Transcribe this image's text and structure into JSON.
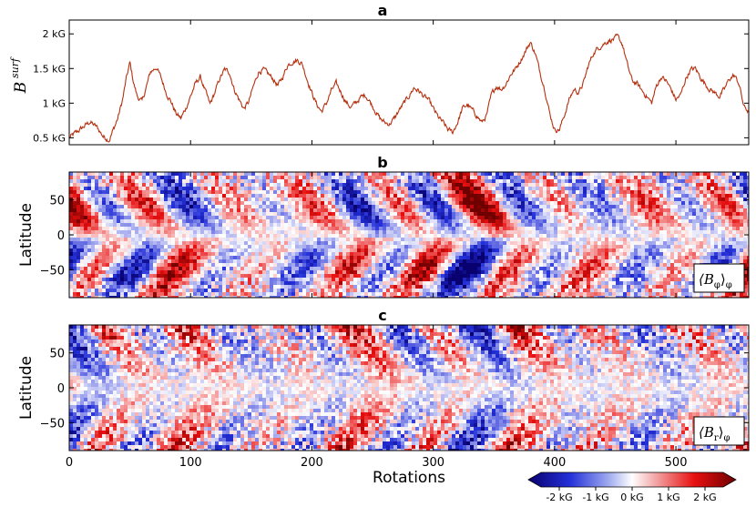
{
  "chart_data": [
    {
      "id": "a",
      "type": "line",
      "title": "a",
      "ylabel": "B",
      "ylabel_sup": "surf",
      "xlim": [
        0,
        560
      ],
      "ylim": [
        0.4,
        2.2
      ],
      "yticks": [
        0.5,
        1,
        1.5,
        2
      ],
      "ytick_labels": [
        "0.5 kG",
        "1 kG",
        "1.5 kG",
        "2 kG"
      ],
      "xticks": [
        0,
        100,
        200,
        300,
        400,
        500
      ],
      "color": "#b5300f",
      "key_points": [
        [
          0,
          0.5
        ],
        [
          6,
          0.58
        ],
        [
          12,
          0.66
        ],
        [
          17,
          0.73
        ],
        [
          23,
          0.65
        ],
        [
          28,
          0.52
        ],
        [
          33,
          0.47
        ],
        [
          40,
          0.78
        ],
        [
          44,
          1.05
        ],
        [
          47,
          1.35
        ],
        [
          50,
          1.58
        ],
        [
          53,
          1.3
        ],
        [
          56,
          1.1
        ],
        [
          60,
          1.02
        ],
        [
          63,
          1.2
        ],
        [
          67,
          1.45
        ],
        [
          72,
          1.52
        ],
        [
          76,
          1.35
        ],
        [
          80,
          1.15
        ],
        [
          84,
          1.02
        ],
        [
          88,
          0.85
        ],
        [
          92,
          0.78
        ],
        [
          96,
          0.92
        ],
        [
          100,
          1.1
        ],
        [
          104,
          1.28
        ],
        [
          108,
          1.38
        ],
        [
          112,
          1.18
        ],
        [
          116,
          0.98
        ],
        [
          120,
          1.15
        ],
        [
          124,
          1.35
        ],
        [
          128,
          1.48
        ],
        [
          132,
          1.45
        ],
        [
          136,
          1.2
        ],
        [
          140,
          1.05
        ],
        [
          144,
          0.92
        ],
        [
          148,
          1.02
        ],
        [
          152,
          1.25
        ],
        [
          156,
          1.45
        ],
        [
          160,
          1.48
        ],
        [
          164,
          1.42
        ],
        [
          168,
          1.35
        ],
        [
          172,
          1.25
        ],
        [
          176,
          1.38
        ],
        [
          180,
          1.55
        ],
        [
          184,
          1.6
        ],
        [
          188,
          1.62
        ],
        [
          192,
          1.57
        ],
        [
          196,
          1.35
        ],
        [
          200,
          1.15
        ],
        [
          204,
          0.98
        ],
        [
          208,
          0.88
        ],
        [
          212,
          1.0
        ],
        [
          216,
          1.18
        ],
        [
          220,
          1.28
        ],
        [
          224,
          1.16
        ],
        [
          228,
          1.02
        ],
        [
          232,
          0.94
        ],
        [
          236,
          1.0
        ],
        [
          240,
          1.08
        ],
        [
          244,
          1.12
        ],
        [
          248,
          1.02
        ],
        [
          252,
          0.9
        ],
        [
          256,
          0.78
        ],
        [
          260,
          0.72
        ],
        [
          264,
          0.7
        ],
        [
          268,
          0.78
        ],
        [
          272,
          0.9
        ],
        [
          276,
          1.0
        ],
        [
          280,
          1.1
        ],
        [
          284,
          1.22
        ],
        [
          288,
          1.18
        ],
        [
          292,
          1.1
        ],
        [
          296,
          1.05
        ],
        [
          300,
          0.92
        ],
        [
          304,
          0.8
        ],
        [
          308,
          0.72
        ],
        [
          312,
          0.62
        ],
        [
          316,
          0.58
        ],
        [
          320,
          0.72
        ],
        [
          324,
          0.92
        ],
        [
          328,
          0.98
        ],
        [
          332,
          0.9
        ],
        [
          336,
          0.82
        ],
        [
          340,
          0.72
        ],
        [
          344,
          0.82
        ],
        [
          348,
          1.12
        ],
        [
          352,
          1.25
        ],
        [
          356,
          1.2
        ],
        [
          360,
          1.28
        ],
        [
          364,
          1.42
        ],
        [
          368,
          1.5
        ],
        [
          372,
          1.62
        ],
        [
          376,
          1.75
        ],
        [
          380,
          1.88
        ],
        [
          384,
          1.72
        ],
        [
          388,
          1.45
        ],
        [
          392,
          1.2
        ],
        [
          396,
          0.85
        ],
        [
          400,
          0.62
        ],
        [
          404,
          0.62
        ],
        [
          408,
          0.82
        ],
        [
          412,
          1.05
        ],
        [
          416,
          1.2
        ],
        [
          420,
          1.15
        ],
        [
          424,
          1.3
        ],
        [
          428,
          1.55
        ],
        [
          432,
          1.72
        ],
        [
          436,
          1.8
        ],
        [
          440,
          1.85
        ],
        [
          444,
          1.9
        ],
        [
          448,
          1.92
        ],
        [
          452,
          1.95
        ],
        [
          456,
          1.85
        ],
        [
          460,
          1.55
        ],
        [
          464,
          1.32
        ],
        [
          468,
          1.28
        ],
        [
          472,
          1.18
        ],
        [
          476,
          1.1
        ],
        [
          480,
          1.0
        ],
        [
          484,
          1.25
        ],
        [
          488,
          1.38
        ],
        [
          492,
          1.32
        ],
        [
          496,
          1.2
        ],
        [
          500,
          1.05
        ],
        [
          504,
          1.12
        ],
        [
          508,
          1.35
        ],
        [
          512,
          1.48
        ],
        [
          516,
          1.5
        ],
        [
          520,
          1.38
        ],
        [
          524,
          1.28
        ],
        [
          528,
          1.2
        ],
        [
          532,
          1.15
        ],
        [
          536,
          1.1
        ],
        [
          540,
          1.2
        ],
        [
          544,
          1.35
        ],
        [
          548,
          1.4
        ],
        [
          552,
          1.28
        ],
        [
          556,
          0.95
        ],
        [
          560,
          0.88
        ]
      ]
    },
    {
      "id": "b",
      "type": "heatmap",
      "title": "b",
      "ylabel": "Latitude",
      "legend_label": "⟨B",
      "legend_sub": "φ",
      "legend_suffix": "⟩",
      "legend_outer_sub": "φ",
      "xlim": [
        0,
        560
      ],
      "ylim": [
        -90,
        90
      ],
      "yticks": [
        50,
        0,
        -50
      ],
      "ytick_labels": [
        "50",
        "0",
        "−50"
      ],
      "pattern": "pairs of inclined bands of positive (red) and negative (blue) toroidal field in each hemisphere migrating equatorward over roughly 25–40 rotation periods"
    },
    {
      "id": "c",
      "type": "heatmap",
      "title": "c",
      "ylabel": "Latitude",
      "xlabel": "Rotations",
      "legend_label": "⟨B",
      "legend_sub": "r",
      "legend_suffix": "⟩",
      "legend_outer_sub": "φ",
      "xlim": [
        0,
        560
      ],
      "ylim": [
        -90,
        90
      ],
      "xticks": [
        0,
        100,
        200,
        300,
        400,
        500
      ],
      "yticks": [
        50,
        0,
        -50
      ],
      "ytick_labels": [
        "50",
        "0",
        "−50"
      ],
      "pattern": "weaker radial field bands of alternating sign migrating equatorward, strongest near the poles"
    },
    {
      "id": "colorbar",
      "type": "colorbar",
      "range_kG": [
        -2.5,
        2.5
      ],
      "ticks": [
        -2,
        -1,
        0,
        1,
        2
      ],
      "tick_labels": [
        "-2 kG",
        "-1 kG",
        "0 kG",
        "1 kG",
        "2 kG"
      ],
      "colors": [
        "#08006e",
        "#2430d8",
        "#ffffff",
        "#e81010",
        "#6e0000"
      ]
    }
  ]
}
